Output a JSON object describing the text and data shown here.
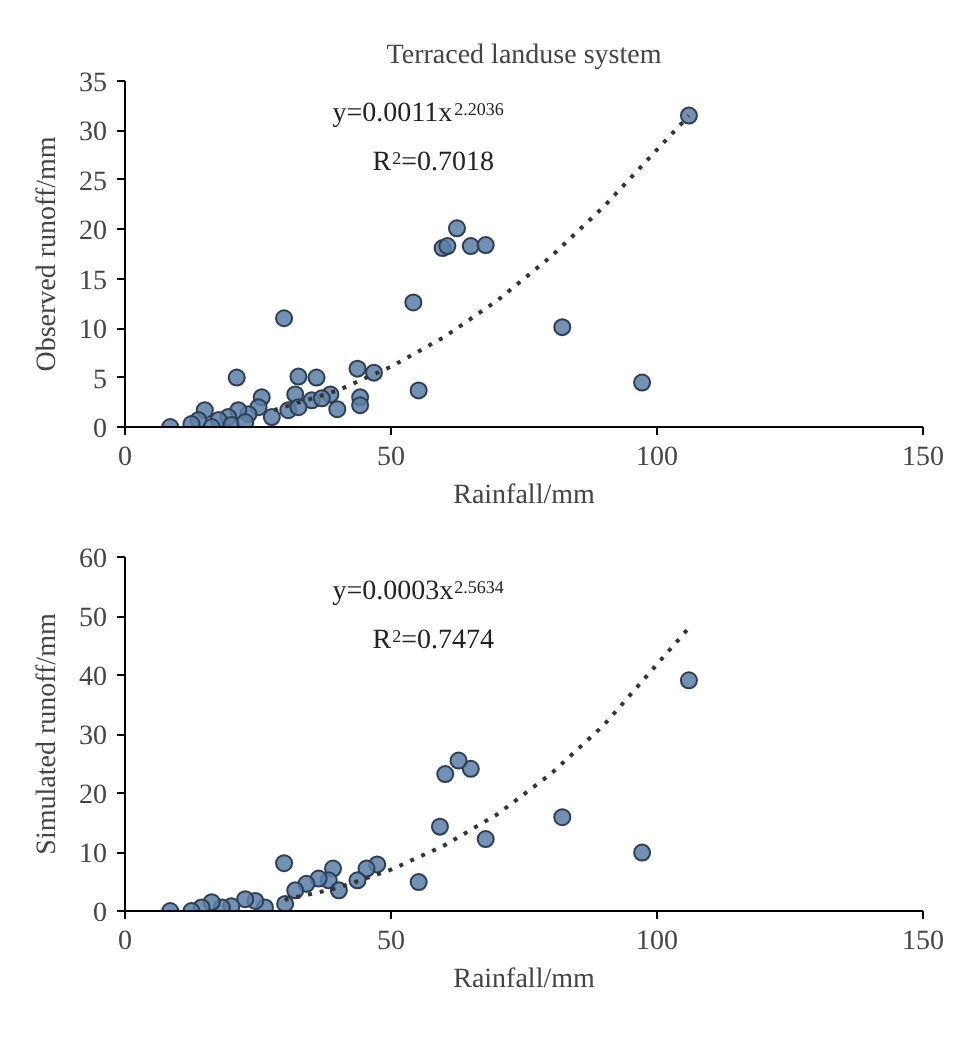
{
  "chart_data": [
    {
      "type": "scatter",
      "title": "Terraced landuse system",
      "xlabel": "Rainfall/mm",
      "ylabel": "Observed runoff/mm",
      "xlim": [
        0,
        150
      ],
      "xticks": [
        0,
        50,
        100,
        150
      ],
      "ylim": [
        0,
        35
      ],
      "yticks": [
        0,
        5,
        10,
        15,
        20,
        25,
        30,
        35
      ],
      "grid": false,
      "annotations": [
        "y=0.0011x$^{2.2036}$",
        "R$^{2}$=0.7018"
      ],
      "series": [
        {
          "marker": "circle",
          "color": "#5b7fa6",
          "x": [
            8.5,
            106,
            59.7,
            60.6,
            62.4,
            65,
            67.8,
            54.2,
            82.2,
            97.2,
            55.2,
            29.9,
            21,
            32.6,
            36,
            43.7,
            46.8,
            44.2,
            44.2,
            39.9,
            38.6,
            35.1,
            32,
            30.7,
            25.7,
            25.1,
            23.2,
            21.3,
            19.4,
            17.6,
            15,
            13.8,
            12.5,
            16.3,
            20,
            22.6,
            27.6,
            32.6,
            37
          ],
          "values": [
            0,
            31.5,
            18.1,
            18.3,
            20.1,
            18.3,
            18.4,
            12.6,
            10.1,
            4.5,
            3.7,
            11,
            5,
            5.1,
            5,
            5.9,
            5.5,
            3,
            2.2,
            1.8,
            3.3,
            2.7,
            3.3,
            1.7,
            3,
            2,
            1.3,
            1.7,
            1,
            0.7,
            1.7,
            0.7,
            0.3,
            0,
            0.2,
            0.5,
            1,
            2,
            2.9
          ]
        },
        {
          "type": "line",
          "color": "#333333",
          "line_style": "dotted",
          "x": [
            28,
            40,
            50,
            60,
            70,
            80,
            90,
            106
          ],
          "values": [
            1.7,
            3.7,
            6.1,
            9.1,
            12.8,
            17.2,
            22.3,
            31.5
          ]
        }
      ]
    },
    {
      "type": "scatter",
      "xlabel": "Rainfall/mm",
      "ylabel": "Simulated runoff/mm",
      "xlim": [
        0,
        150
      ],
      "xticks": [
        0,
        50,
        100,
        150
      ],
      "ylim": [
        0,
        60
      ],
      "yticks": [
        0,
        10,
        20,
        30,
        40,
        50,
        60
      ],
      "grid": false,
      "annotations": [
        "y=0.0003x$^{2.5634}$",
        "R$^{2}$=0.7474"
      ],
      "series": [
        {
          "marker": "circle",
          "color": "#5b7fa6",
          "x": [
            8.5,
            106,
            97.2,
            82.2,
            67.8,
            65,
            62.7,
            60.2,
            59.2,
            55.2,
            47.4,
            45.4,
            43.7,
            39.1,
            38.3,
            36.4,
            34.1,
            32,
            29.9,
            30.1,
            26.3,
            24.5,
            22.6,
            20,
            18.2,
            16.3,
            14.4,
            12.5,
            40.2
          ],
          "values": [
            0,
            39.1,
            9.9,
            15.9,
            12.2,
            24.1,
            25.5,
            23.2,
            14.3,
            4.9,
            7.9,
            7.2,
            5.2,
            7.2,
            5.2,
            5.5,
            4.6,
            3.5,
            8.1,
            1.2,
            0.6,
            1.7,
            2,
            0.8,
            0.6,
            1.5,
            0.6,
            0,
            3.5
          ]
        },
        {
          "type": "line",
          "color": "#333333",
          "line_style": "dotted",
          "x": [
            30,
            40,
            50,
            60,
            70,
            80,
            90,
            106
          ],
          "values": [
            1.9,
            3.9,
            7.0,
            11.1,
            16.4,
            23.2,
            31.5,
            48
          ]
        }
      ]
    }
  ]
}
